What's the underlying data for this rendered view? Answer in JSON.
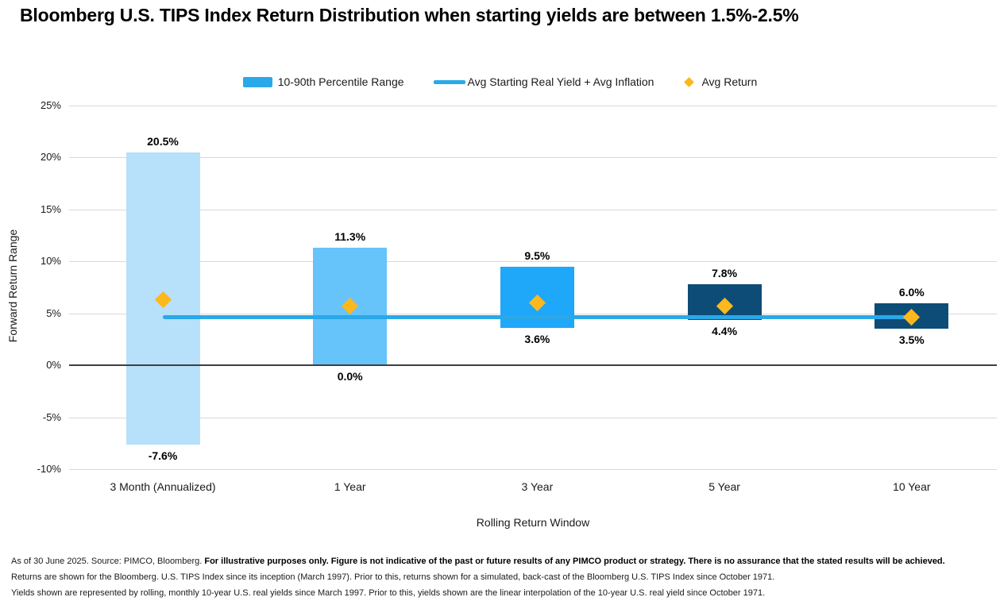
{
  "title": "Bloomberg U.S. TIPS Index Return Distribution when starting yields are between 1.5%-2.5%",
  "legend": {
    "items": [
      {
        "label": "10-90th Percentile Range",
        "swatch": "bar",
        "color": "#29A9E9"
      },
      {
        "label": "Avg Starting Real Yield + Avg Inflation",
        "swatch": "line",
        "color": "#29A9E9"
      },
      {
        "label": "Avg Return",
        "swatch": "diamond",
        "color": "#FCB81C"
      }
    ]
  },
  "chart_data": {
    "type": "bar",
    "subtype": "floating range bars with horizontal average line and diamond markers",
    "title": "Bloomberg U.S. TIPS Index Return Distribution when starting yields are between 1.5%-2.5%",
    "categories": [
      "3 Month (Annualized)",
      "1 Year",
      "3 Year",
      "5 Year",
      "10 Year"
    ],
    "series": [
      {
        "name": "10-90th Percentile Range",
        "type": "range-bar",
        "low": [
          -7.6,
          0.0,
          3.6,
          4.4,
          3.5
        ],
        "high": [
          20.5,
          11.3,
          9.5,
          7.8,
          6.0
        ],
        "labels_high": [
          "20.5%",
          "11.3%",
          "9.5%",
          "7.8%",
          "6.0%"
        ],
        "labels_low": [
          "-7.6%",
          "0.0%",
          "3.6%",
          "4.4%",
          "3.5%"
        ],
        "bar_colors": [
          "#B7E0FA",
          "#66C4FA",
          "#1FA7FA",
          "#0D4C77",
          "#0D4C77"
        ]
      },
      {
        "name": "Avg Starting Real Yield + Avg Inflation",
        "type": "line",
        "value": 4.6,
        "color": "#2AA8E8"
      },
      {
        "name": "Avg Return",
        "type": "scatter",
        "marker": "diamond",
        "values": [
          6.3,
          5.7,
          6.0,
          5.7,
          4.6
        ],
        "color": "#FCB81C"
      }
    ],
    "xlabel": "Rolling Return Window",
    "ylabel": "Forward Return Range",
    "ylim": [
      -10,
      25
    ],
    "ytick_values": [
      25,
      20,
      15,
      10,
      5,
      0,
      -5,
      -10
    ],
    "yticks": [
      "25%",
      "20%",
      "15%",
      "10%",
      "5%",
      "0%",
      "-5%",
      "-10%"
    ],
    "grid": "horizontal",
    "legend_position": "top",
    "zero_axis": true
  },
  "footer": {
    "line1_normal": "As of 30 June 2025. Source: PIMCO, Bloomberg. ",
    "line1_bold": "For illustrative purposes only. Figure is not indicative of the past or future results of any PIMCO product or strategy. There is no assurance that the stated results will be achieved.",
    "line2": "Returns are shown for the Bloomberg. U.S. TIPS Index since its inception (March 1997). Prior to this, returns shown for a simulated, back-cast of the Bloomberg U.S. TIPS Index since October 1971.",
    "line3": "Yields shown are represented by rolling, monthly 10-year U.S. real yields since March 1997. Prior to this, yields shown are the linear interpolation of the 10-year U.S. real yield since October 1971."
  }
}
